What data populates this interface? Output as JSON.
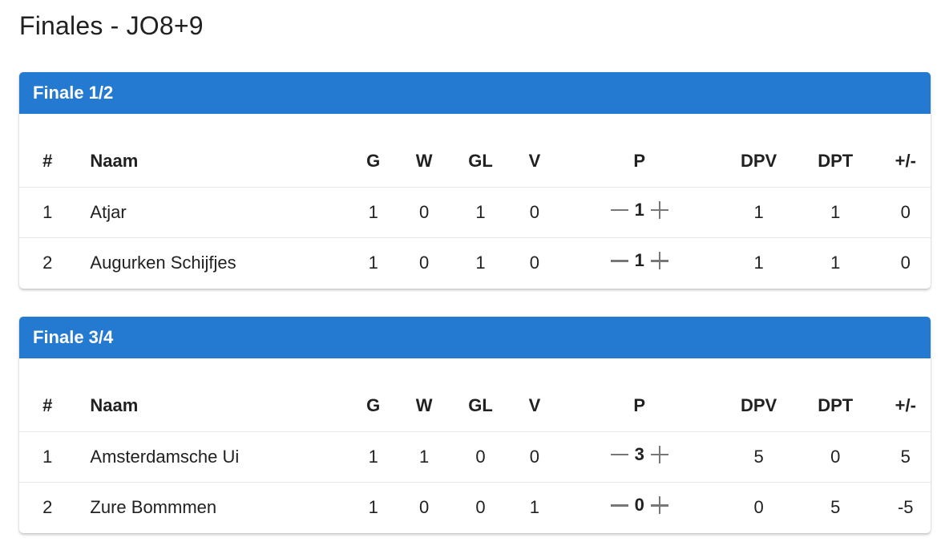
{
  "page": {
    "title": "Finales - JO8+9"
  },
  "columns": {
    "rank": "#",
    "name": "Naam",
    "g": "G",
    "w": "W",
    "gl": "GL",
    "v": "V",
    "p": "P",
    "dpv": "DPV",
    "dpt": "DPT",
    "diff": "+/-"
  },
  "finals": [
    {
      "title": "Finale 1/2",
      "rows": [
        {
          "rank": "1",
          "name": "Atjar",
          "g": "1",
          "w": "0",
          "gl": "1",
          "v": "0",
          "p": "1",
          "dpv": "1",
          "dpt": "1",
          "diff": "0"
        },
        {
          "rank": "2",
          "name": "Augurken Schijfjes",
          "g": "1",
          "w": "0",
          "gl": "1",
          "v": "0",
          "p": "1",
          "dpv": "1",
          "dpt": "1",
          "diff": "0"
        }
      ]
    },
    {
      "title": "Finale 3/4",
      "rows": [
        {
          "rank": "1",
          "name": "Amsterdamsche Ui",
          "g": "1",
          "w": "1",
          "gl": "0",
          "v": "0",
          "p": "3",
          "dpv": "5",
          "dpt": "0",
          "diff": "5"
        },
        {
          "rank": "2",
          "name": "Zure Bommmen",
          "g": "1",
          "w": "0",
          "gl": "0",
          "v": "1",
          "p": "0",
          "dpv": "0",
          "dpt": "5",
          "diff": "-5"
        }
      ]
    }
  ],
  "colors": {
    "header": "#2479d0",
    "control": "#777777"
  }
}
